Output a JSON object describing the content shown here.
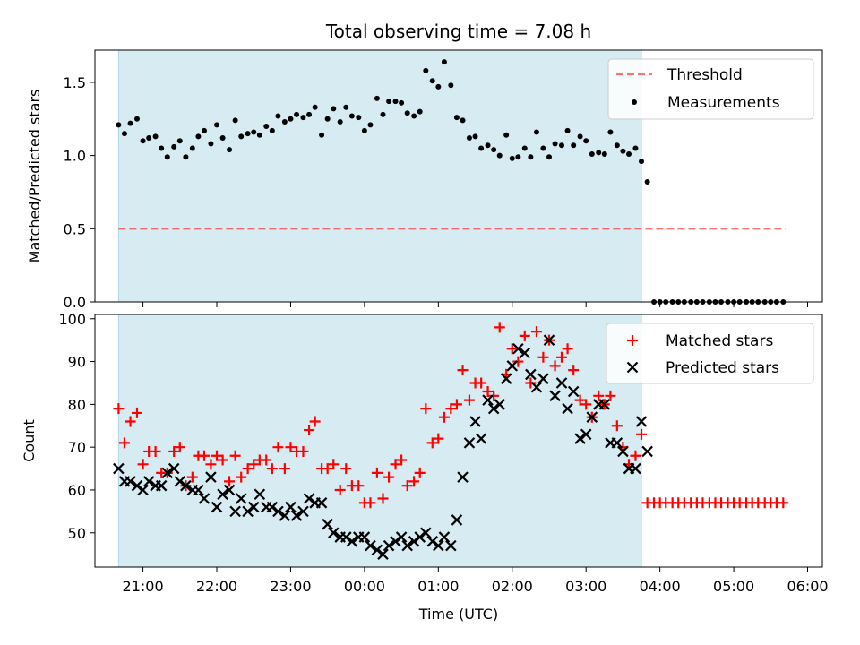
{
  "chart_data": {
    "title": "Total observing time = 7.08 h",
    "xlabel": "Time (UTC)",
    "x_unit": "hours",
    "xlim": [
      -3.65,
      6.2
    ],
    "xticks": [
      {
        "value": -3,
        "label": "21:00"
      },
      {
        "value": -2,
        "label": "22:00"
      },
      {
        "value": -1,
        "label": "23:00"
      },
      {
        "value": 0,
        "label": "00:00"
      },
      {
        "value": 1,
        "label": "01:00"
      },
      {
        "value": 2,
        "label": "02:00"
      },
      {
        "value": 3,
        "label": "03:00"
      },
      {
        "value": 4,
        "label": "04:00"
      },
      {
        "value": 5,
        "label": "05:00"
      },
      {
        "value": 6,
        "label": "06:00"
      }
    ],
    "observing_window": {
      "start": -3.33,
      "end": 3.75,
      "color": "#add8e6"
    },
    "top_panel": {
      "type": "scatter",
      "ylabel": "Matched/Predicted stars",
      "ylim": [
        0,
        1.72
      ],
      "yticks": [
        {
          "value": 0,
          "label": "0.0"
        },
        {
          "value": 0.5,
          "label": "0.5"
        },
        {
          "value": 1.0,
          "label": "1.0"
        },
        {
          "value": 1.5,
          "label": "1.5"
        }
      ],
      "threshold": {
        "name": "Threshold",
        "value": 0.5,
        "x_range": [
          -3.33,
          5.7
        ],
        "color": "#ff0000"
      },
      "measurements": {
        "name": "Measurements",
        "color": "#000000",
        "x": [
          -3.33,
          -3.25,
          -3.17,
          -3.08,
          -3.0,
          -2.92,
          -2.83,
          -2.75,
          -2.67,
          -2.58,
          -2.5,
          -2.42,
          -2.33,
          -2.25,
          -2.17,
          -2.08,
          -2.0,
          -1.92,
          -1.83,
          -1.75,
          -1.67,
          -1.58,
          -1.5,
          -1.42,
          -1.33,
          -1.25,
          -1.17,
          -1.08,
          -1.0,
          -0.92,
          -0.83,
          -0.75,
          -0.67,
          -0.58,
          -0.5,
          -0.42,
          -0.33,
          -0.25,
          -0.17,
          -0.08,
          0.0,
          0.08,
          0.17,
          0.25,
          0.33,
          0.42,
          0.5,
          0.58,
          0.67,
          0.75,
          0.83,
          0.92,
          1.0,
          1.08,
          1.17,
          1.25,
          1.33,
          1.42,
          1.5,
          1.58,
          1.67,
          1.75,
          1.83,
          1.92,
          2.0,
          2.08,
          2.17,
          2.25,
          2.33,
          2.42,
          2.5,
          2.58,
          2.67,
          2.75,
          2.83,
          2.92,
          3.0,
          3.08,
          3.17,
          3.25,
          3.33,
          3.42,
          3.5,
          3.58,
          3.67,
          3.75,
          3.83,
          3.92,
          4.0,
          4.08,
          4.17,
          4.25,
          4.33,
          4.42,
          4.5,
          4.58,
          4.67,
          4.75,
          4.83,
          4.92,
          5.0,
          5.08,
          5.17,
          5.25,
          5.33,
          5.42,
          5.5,
          5.58,
          5.67
        ],
        "y": [
          1.21,
          1.15,
          1.22,
          1.25,
          1.1,
          1.12,
          1.13,
          1.05,
          0.99,
          1.06,
          1.1,
          0.99,
          1.05,
          1.13,
          1.17,
          1.08,
          1.21,
          1.12,
          1.04,
          1.24,
          1.13,
          1.15,
          1.16,
          1.14,
          1.2,
          1.17,
          1.27,
          1.23,
          1.25,
          1.28,
          1.26,
          1.28,
          1.33,
          1.14,
          1.25,
          1.32,
          1.23,
          1.33,
          1.27,
          1.26,
          1.17,
          1.21,
          1.39,
          1.28,
          1.37,
          1.37,
          1.36,
          1.29,
          1.27,
          1.3,
          1.58,
          1.51,
          1.47,
          1.64,
          1.48,
          1.26,
          1.24,
          1.12,
          1.13,
          1.05,
          1.07,
          1.04,
          1.0,
          1.14,
          0.98,
          0.99,
          1.05,
          0.99,
          1.16,
          1.05,
          0.99,
          1.08,
          1.07,
          1.17,
          1.07,
          1.13,
          1.1,
          1.01,
          1.02,
          1.01,
          1.16,
          1.07,
          1.03,
          1.01,
          1.05,
          0.96,
          0.82,
          0.0,
          0.0,
          0.0,
          0.0,
          0.0,
          0.0,
          0.0,
          0.0,
          0.0,
          0.0,
          0.0,
          0.0,
          0.0,
          0.0,
          0.0,
          0.0,
          0.0,
          0.0,
          0.0,
          0.0,
          0.0,
          0.0
        ]
      }
    },
    "bottom_panel": {
      "type": "scatter",
      "ylabel": "Count",
      "ylim": [
        42,
        101
      ],
      "yticks": [
        {
          "value": 50,
          "label": "50"
        },
        {
          "value": 60,
          "label": "60"
        },
        {
          "value": 70,
          "label": "70"
        },
        {
          "value": 80,
          "label": "80"
        },
        {
          "value": 90,
          "label": "90"
        },
        {
          "value": 100,
          "label": "100"
        }
      ],
      "series": [
        {
          "name": "Matched stars",
          "marker": "+",
          "color": "#ff0000",
          "x": [
            -3.33,
            -3.25,
            -3.17,
            -3.08,
            -3.0,
            -2.92,
            -2.83,
            -2.75,
            -2.67,
            -2.58,
            -2.5,
            -2.42,
            -2.33,
            -2.25,
            -2.17,
            -2.08,
            -2.0,
            -1.92,
            -1.83,
            -1.75,
            -1.67,
            -1.58,
            -1.5,
            -1.42,
            -1.33,
            -1.25,
            -1.17,
            -1.08,
            -1.0,
            -0.92,
            -0.83,
            -0.75,
            -0.67,
            -0.58,
            -0.5,
            -0.42,
            -0.33,
            -0.25,
            -0.17,
            -0.08,
            0.0,
            0.08,
            0.17,
            0.25,
            0.33,
            0.42,
            0.5,
            0.58,
            0.67,
            0.75,
            0.83,
            0.92,
            1.0,
            1.08,
            1.17,
            1.25,
            1.33,
            1.42,
            1.5,
            1.58,
            1.67,
            1.75,
            1.83,
            1.92,
            2.0,
            2.08,
            2.17,
            2.25,
            2.33,
            2.42,
            2.5,
            2.58,
            2.67,
            2.75,
            2.83,
            2.92,
            3.0,
            3.08,
            3.17,
            3.25,
            3.33,
            3.42,
            3.5,
            3.58,
            3.67,
            3.75,
            3.83,
            3.92,
            4.0,
            4.08,
            4.17,
            4.25,
            4.33,
            4.42,
            4.5,
            4.58,
            4.67,
            4.75,
            4.83,
            4.92,
            5.0,
            5.08,
            5.17,
            5.25,
            5.33,
            5.42,
            5.5,
            5.58,
            5.67
          ],
          "y": [
            79,
            71,
            76,
            78,
            66,
            69,
            69,
            64,
            64,
            69,
            70,
            61,
            63,
            68,
            68,
            66,
            68,
            67,
            62,
            68,
            63,
            65,
            66,
            67,
            67,
            65,
            70,
            65,
            70,
            69,
            69,
            74,
            76,
            65,
            65,
            66,
            60,
            65,
            61,
            61,
            57,
            57,
            64,
            58,
            63,
            66,
            67,
            61,
            62,
            64,
            79,
            71,
            72,
            77,
            79,
            80,
            88,
            81,
            85,
            85,
            83,
            82,
            98,
            87,
            93,
            90,
            96,
            85,
            97,
            91,
            95,
            89,
            91,
            93,
            88,
            81,
            80,
            77,
            82,
            80,
            82,
            75,
            70,
            66,
            68,
            73,
            57,
            57,
            57,
            57,
            57,
            57,
            57,
            57,
            57,
            57,
            57,
            57,
            57,
            57,
            57,
            57,
            57,
            57,
            57,
            57,
            57,
            57,
            57
          ]
        },
        {
          "name": "Predicted stars",
          "marker": "x",
          "color": "#000000",
          "x": [
            -3.33,
            -3.25,
            -3.17,
            -3.08,
            -3.0,
            -2.92,
            -2.83,
            -2.75,
            -2.67,
            -2.58,
            -2.5,
            -2.42,
            -2.33,
            -2.25,
            -2.17,
            -2.08,
            -2.0,
            -1.92,
            -1.83,
            -1.75,
            -1.67,
            -1.58,
            -1.5,
            -1.42,
            -1.33,
            -1.25,
            -1.17,
            -1.08,
            -1.0,
            -0.92,
            -0.83,
            -0.75,
            -0.67,
            -0.58,
            -0.5,
            -0.42,
            -0.33,
            -0.25,
            -0.17,
            -0.08,
            0.0,
            0.08,
            0.17,
            0.25,
            0.33,
            0.42,
            0.5,
            0.58,
            0.67,
            0.75,
            0.83,
            0.92,
            1.0,
            1.08,
            1.17,
            1.25,
            1.33,
            1.42,
            1.5,
            1.58,
            1.67,
            1.75,
            1.83,
            1.92,
            2.0,
            2.08,
            2.17,
            2.25,
            2.33,
            2.42,
            2.5,
            2.58,
            2.67,
            2.75,
            2.83,
            2.92,
            3.0,
            3.08,
            3.17,
            3.25,
            3.33,
            3.42,
            3.5,
            3.58,
            3.67,
            3.75,
            3.83
          ],
          "y": [
            65,
            62,
            62,
            61,
            60,
            62,
            61,
            61,
            64,
            65,
            62,
            61,
            60,
            60,
            58,
            63,
            56,
            59,
            60,
            55,
            58,
            55,
            56,
            59,
            56,
            56,
            55,
            54,
            56,
            54,
            55,
            58,
            57,
            57,
            52,
            50,
            49,
            49,
            48,
            49,
            49,
            47,
            46,
            45,
            47,
            48,
            49,
            47,
            48,
            49,
            50,
            48,
            47,
            49,
            47,
            53,
            63,
            71,
            76,
            72,
            81,
            79,
            80,
            86,
            89,
            93,
            92,
            87,
            84,
            86,
            95,
            82,
            85,
            79,
            83,
            72,
            73,
            77,
            80,
            80,
            71,
            71,
            69,
            65,
            65,
            76,
            69
          ]
        }
      ]
    }
  }
}
